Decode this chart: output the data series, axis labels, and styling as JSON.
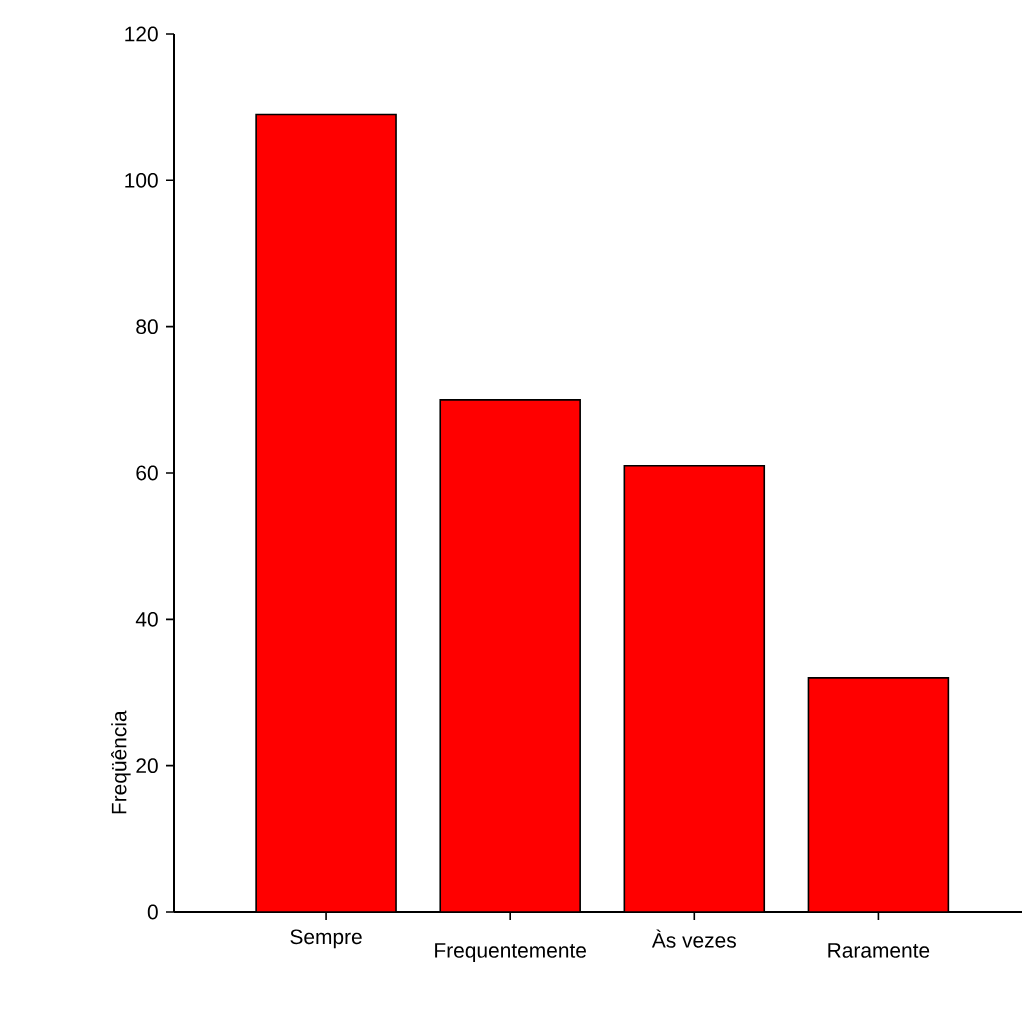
{
  "chart_data": {
    "type": "bar",
    "ylabel": "Freqüência",
    "categories": [
      "Sempre",
      "Frequentemente",
      "Às vezes",
      "Raramente"
    ],
    "values": [
      109,
      70,
      61,
      32
    ],
    "color": "#ff0000",
    "ylim": [
      0,
      120
    ],
    "yticks": [
      0,
      20,
      40,
      60,
      80,
      100,
      120
    ],
    "grid": false
  }
}
